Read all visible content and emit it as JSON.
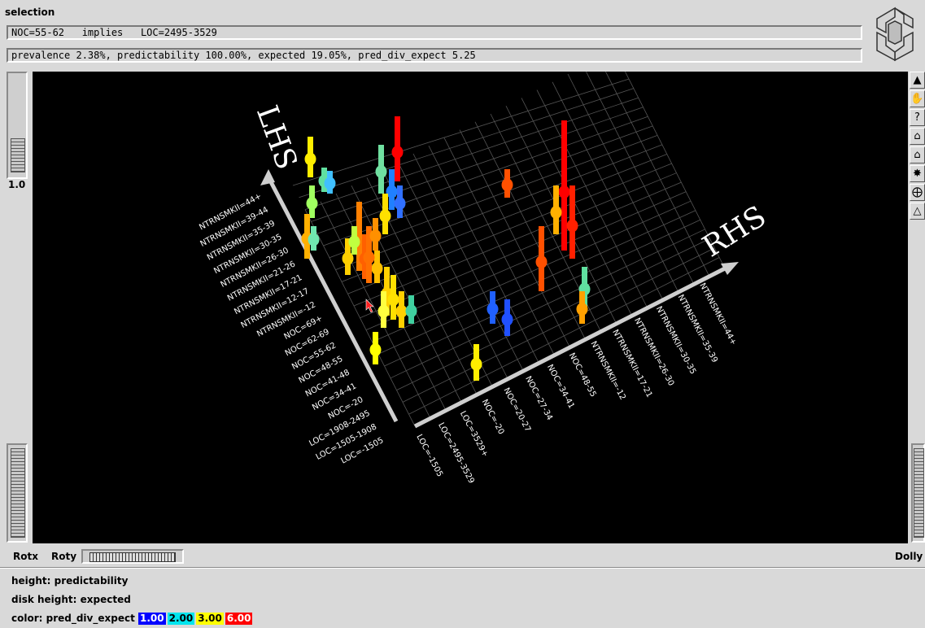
{
  "window": {
    "title": "selection",
    "rule_line": "NOC=55-62   implies   LOC=2495-3529",
    "stats_line": "prevalence 2.38%, predictability 100.00%, expected 19.05%, pred_div_expect 5.25"
  },
  "left_panel": {
    "zoom_value": "1.0"
  },
  "scene": {
    "lhs_title": "LHS",
    "rhs_title": "RHS",
    "lhs_labels": [
      "NTRNSMKII=44+",
      "NTRNSMKII=39-44",
      "NTRNSMKII=35-39",
      "NTRNSMKII=30-35",
      "NTRNSMKII=26-30",
      "NTRNSMKII=21-26",
      "NTRNSMKII=17-21",
      "NTRNSMKII=12-17",
      "NTRNSMKII=-12",
      "NOC=69+",
      "NOC=62-69",
      "NOC=55-62",
      "NOC=48-55",
      "NOC=41-48",
      "NOC=34-41",
      "NOC=-20",
      "LOC=1908-2495",
      "LOC=1505-1908",
      "LOC=-1505"
    ],
    "rhs_labels": [
      "LOC=-1505",
      "LOC=2495-3529",
      "LOC=3529+",
      "NOC=-20",
      "NOC=20-27",
      "NOC=27-34",
      "NOC=34-41",
      "NOC=48-55",
      "NTRNSMKII=-12",
      "NTRNSMKII=17-21",
      "NTRNSMKII=26-30",
      "NTRNSMKII=30-35",
      "NTRNSMKII=35-39",
      "NTRNSMKII=44+"
    ]
  },
  "toolbar": {
    "tools": [
      "arrow-pointer",
      "hand-rotate",
      "help",
      "home",
      "set-home",
      "view-all",
      "seek",
      "perspective"
    ],
    "help_glyph": "?"
  },
  "thumbwheels": {
    "rotx_label": "Rotx",
    "roty_label": "Roty",
    "dolly_label": "Dolly"
  },
  "legend": {
    "height_text": "height: predictability",
    "disk_text": "disk height: expected",
    "color_prefix": "color: pred_div_expect",
    "swatches": [
      {
        "label": "1.00",
        "bg": "#0000ff",
        "fg": "#ffffff"
      },
      {
        "label": "2.00",
        "bg": "#00e5ee",
        "fg": "#000000"
      },
      {
        "label": "3.00",
        "bg": "#ffff00",
        "fg": "#000000"
      },
      {
        "label": "6.00",
        "bg": "#ff0000",
        "fg": "#ffffff"
      }
    ]
  },
  "colors": {
    "viewer_bg": "#000000",
    "panel_bg": "#d9d9d9",
    "axis": "#cccccc",
    "cursor": "#ff2020"
  }
}
